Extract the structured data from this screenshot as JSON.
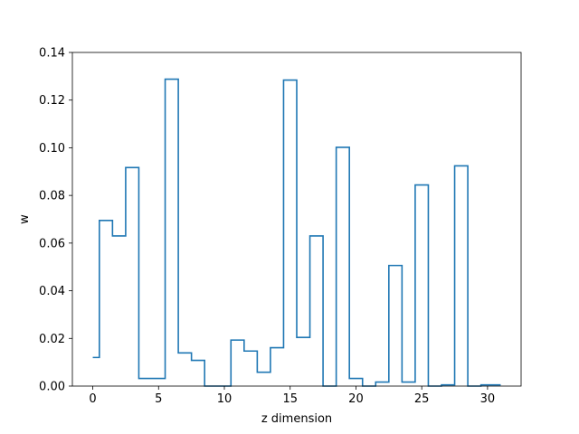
{
  "chart_data": {
    "type": "line",
    "style": "step",
    "xlabel": "z dimension",
    "ylabel": "w",
    "xlim": [
      -1.55,
      32.55
    ],
    "ylim": [
      0.0,
      0.14
    ],
    "x_ticks": [
      0,
      5,
      10,
      15,
      20,
      25,
      30
    ],
    "y_ticks": [
      0.0,
      0.02,
      0.04,
      0.06,
      0.08,
      0.1,
      0.12,
      0.14
    ],
    "x_tick_labels": [
      "0",
      "5",
      "10",
      "15",
      "20",
      "25",
      "30"
    ],
    "y_tick_labels": [
      "0.00",
      "0.02",
      "0.04",
      "0.06",
      "0.08",
      "0.10",
      "0.12",
      "0.14"
    ],
    "grid": false,
    "legend": "none",
    "line_color": "#1f77b4",
    "series": [
      {
        "x": [
          0,
          1,
          2,
          3,
          4,
          5,
          6,
          7,
          8,
          9,
          10,
          11,
          12,
          13,
          14,
          15,
          16,
          17,
          18,
          19,
          20,
          21,
          22,
          23,
          24,
          25,
          26,
          27,
          28,
          29,
          30,
          31
        ],
        "values": [
          0.012,
          0.0695,
          0.063,
          0.0917,
          0.0032,
          0.0032,
          0.1288,
          0.0139,
          0.0108,
          0.0,
          0.0,
          0.0193,
          0.0147,
          0.0058,
          0.0161,
          0.1284,
          0.0204,
          0.063,
          0.0,
          0.1002,
          0.0032,
          0.0,
          0.0017,
          0.0506,
          0.0017,
          0.0844,
          0.0,
          0.0005,
          0.0924,
          0.0,
          0.0005,
          0.0005
        ]
      }
    ]
  }
}
